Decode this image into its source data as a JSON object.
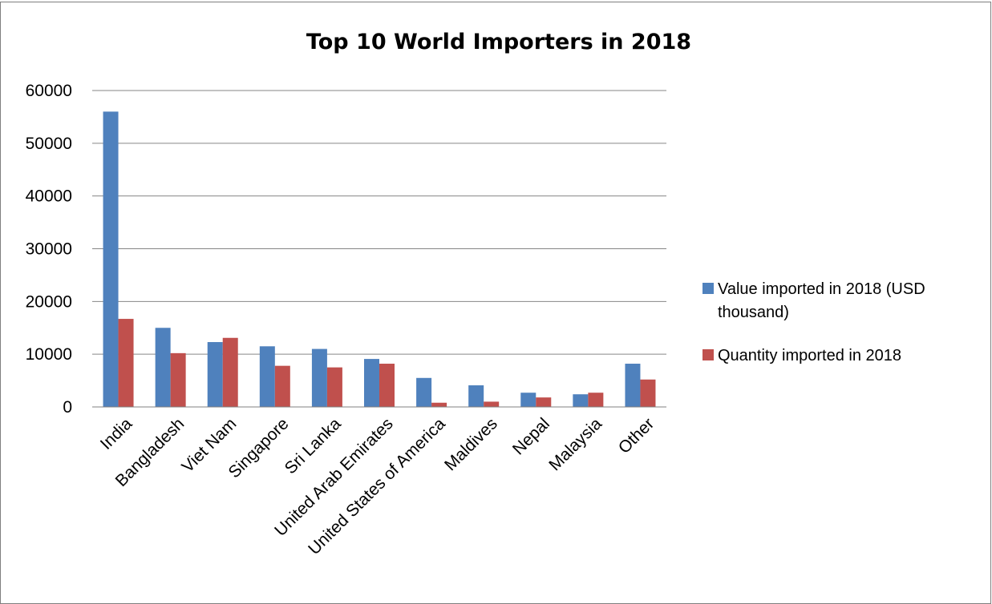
{
  "chart_data": {
    "type": "bar",
    "title": "Top 10 World Importers in 2018",
    "xlabel": "",
    "ylabel": "",
    "ylim": [
      0,
      60000
    ],
    "yticks": [
      0,
      10000,
      20000,
      30000,
      40000,
      50000,
      60000
    ],
    "ytick_labels": [
      "0",
      "10000",
      "20000",
      "30000",
      "40000",
      "50000",
      "60000"
    ],
    "grid": true,
    "legend_position": "right",
    "categories": [
      "India",
      "Bangladesh",
      "Viet Nam",
      "Singapore",
      "Sri Lanka",
      "United Arab Emirates",
      "United States of America",
      "Maldives",
      "Nepal",
      "Malaysia",
      "Other"
    ],
    "series": [
      {
        "name": "Value imported in 2018 (USD thousand)",
        "legend_lines": [
          "Value imported in 2018 (USD",
          "thousand)"
        ],
        "color": "#4F81BD",
        "values": [
          56000,
          15000,
          12300,
          11500,
          11000,
          9100,
          5500,
          4100,
          2700,
          2400,
          8200
        ]
      },
      {
        "name": "Quantity imported in 2018",
        "legend_lines": [
          "Quantity imported in 2018"
        ],
        "color": "#C0504D",
        "values": [
          16700,
          10200,
          13100,
          7800,
          7500,
          8200,
          800,
          1000,
          1800,
          2700,
          5200
        ]
      }
    ]
  }
}
